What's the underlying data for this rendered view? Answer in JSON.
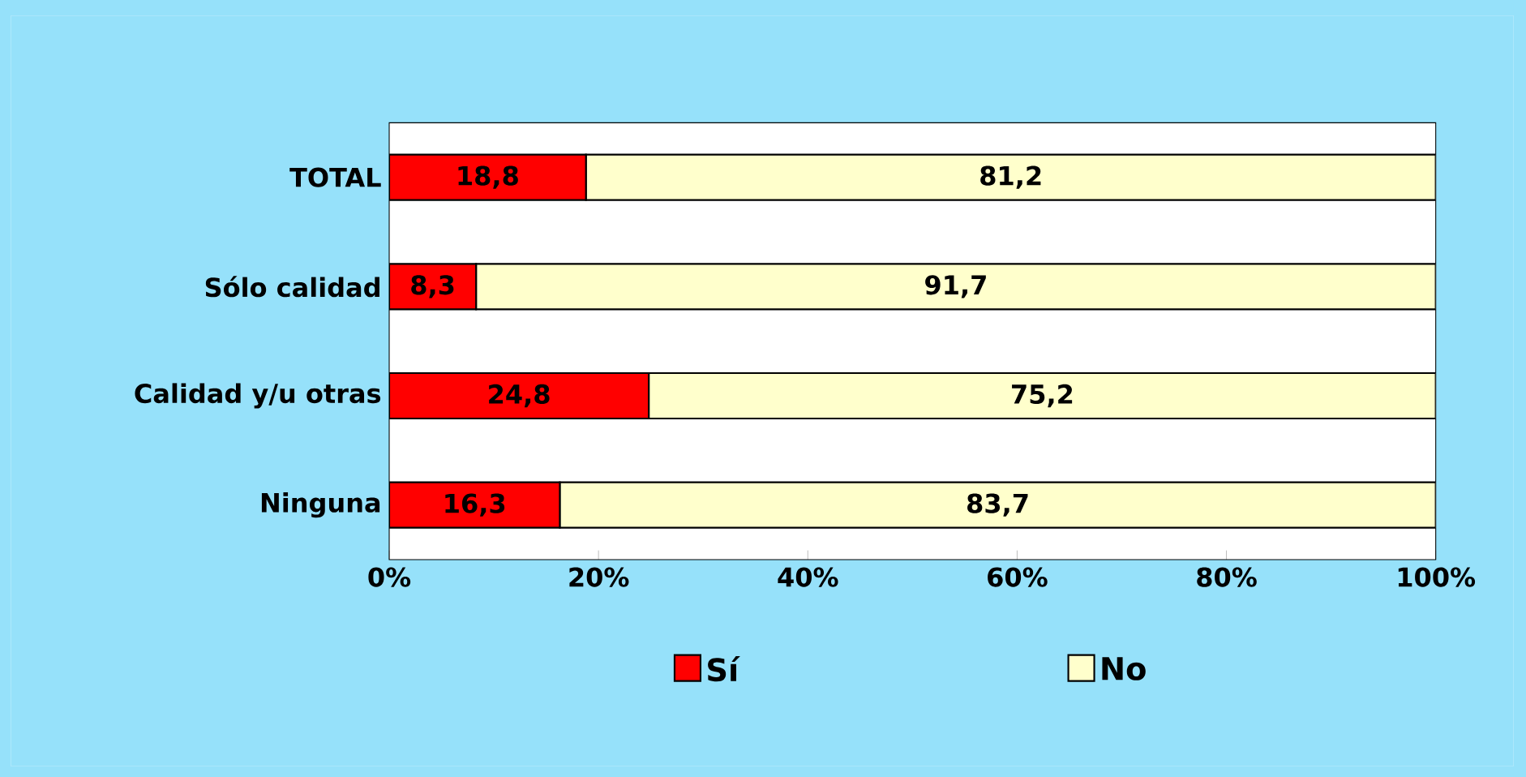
{
  "chart_data": {
    "type": "bar",
    "orientation": "horizontal",
    "stacked": true,
    "categories": [
      "TOTAL",
      "Sólo calidad",
      "Calidad y/u otras",
      "Ninguna"
    ],
    "series": [
      {
        "name": "Sí",
        "color": "#ff0000",
        "values": [
          18.8,
          8.3,
          24.8,
          16.3
        ],
        "value_labels": [
          "18,8",
          "8,3",
          "24,8",
          "16,3"
        ]
      },
      {
        "name": "No",
        "color": "#ffffcc",
        "values": [
          81.2,
          91.7,
          75.2,
          83.7
        ],
        "value_labels": [
          "81,2",
          "91,7",
          "75,2",
          "83,7"
        ]
      }
    ],
    "xlim": [
      0,
      100
    ],
    "xticks": [
      {
        "value": 0,
        "label": "0%"
      },
      {
        "value": 20,
        "label": "20%"
      },
      {
        "value": 40,
        "label": "40%"
      },
      {
        "value": 60,
        "label": "60%"
      },
      {
        "value": 80,
        "label": "80%"
      },
      {
        "value": 100,
        "label": "100%"
      }
    ],
    "legend": "bottom"
  }
}
